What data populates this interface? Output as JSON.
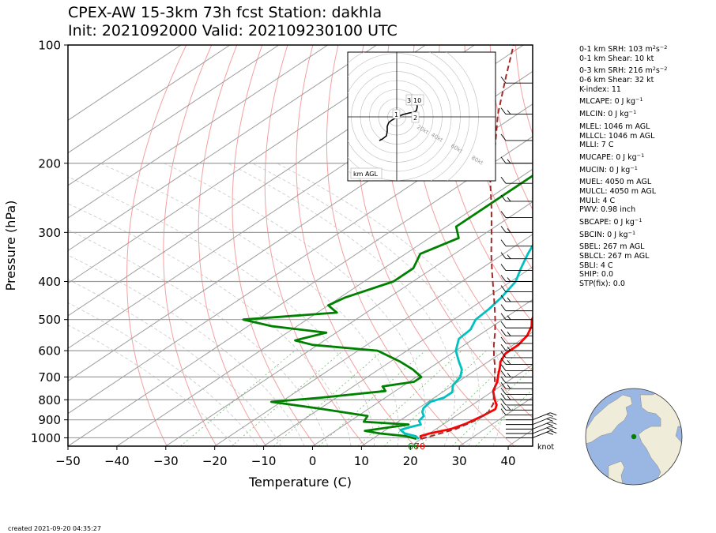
{
  "title_line1": "CPEX-AW 15-3km  73h fcst  Station: dakhla",
  "title_line2": "Init: 2021092000  Valid: 202109230100 UTC",
  "chart_data": {
    "type": "line",
    "chart_kind": "skew-T log-P sounding",
    "xlabel": "Temperature (C)",
    "ylabel": "Pressure (hPa)",
    "xlim": [
      -50,
      45
    ],
    "ylim": [
      1050,
      100
    ],
    "y_scale": "log",
    "x_ticks": [
      "−50",
      "−40",
      "−30",
      "−20",
      "−10",
      "0",
      "10",
      "20",
      "30",
      "40"
    ],
    "x_tick_values": [
      -50,
      -40,
      -30,
      -20,
      -10,
      0,
      10,
      20,
      30,
      40
    ],
    "y_ticks": [
      100,
      200,
      300,
      400,
      500,
      600,
      700,
      800,
      900,
      1000
    ],
    "surface_labels": {
      "dewpoint": "66",
      "temperature": "70"
    },
    "barb_units": "knot",
    "series": [
      {
        "id": "temperature",
        "color": "#ff0000",
        "points": [
          [
            1006,
            20
          ],
          [
            990,
            19
          ],
          [
            975,
            20
          ],
          [
            950,
            23
          ],
          [
            920,
            24.5
          ],
          [
            880,
            25.5
          ],
          [
            845,
            26
          ],
          [
            825,
            25
          ],
          [
            800,
            23
          ],
          [
            760,
            20
          ],
          [
            720,
            18
          ],
          [
            690,
            16
          ],
          [
            660,
            14
          ],
          [
            640,
            12.5
          ],
          [
            610,
            11
          ],
          [
            580,
            11
          ],
          [
            550,
            10
          ],
          [
            520,
            8
          ],
          [
            500,
            6
          ],
          [
            470,
            4
          ],
          [
            450,
            2
          ],
          [
            420,
            -2
          ],
          [
            400,
            -5
          ],
          [
            370,
            -9
          ],
          [
            340,
            -12
          ],
          [
            300,
            -16
          ],
          [
            270,
            -19
          ],
          [
            240,
            -23
          ],
          [
            210,
            -27
          ],
          [
            190,
            -30
          ],
          [
            170,
            -32.5
          ],
          [
            150,
            -35
          ],
          [
            130,
            -37.5
          ],
          [
            115,
            -39
          ],
          [
            100,
            -40
          ]
        ]
      },
      {
        "id": "dewpoint",
        "color": "#008000",
        "points": [
          [
            1006,
            19
          ],
          [
            990,
            16
          ],
          [
            975,
            10
          ],
          [
            960,
            6
          ],
          [
            940,
            10
          ],
          [
            925,
            13
          ],
          [
            910,
            3
          ],
          [
            880,
            2
          ],
          [
            840,
            -11
          ],
          [
            810,
            -22
          ],
          [
            790,
            -13
          ],
          [
            760,
            -2
          ],
          [
            740,
            -4
          ],
          [
            720,
            1
          ],
          [
            700,
            1
          ],
          [
            670,
            -3
          ],
          [
            640,
            -8
          ],
          [
            600,
            -16
          ],
          [
            580,
            -31
          ],
          [
            565,
            -36
          ],
          [
            540,
            -32
          ],
          [
            520,
            -45
          ],
          [
            500,
            -53
          ],
          [
            480,
            -36
          ],
          [
            460,
            -40
          ],
          [
            440,
            -39
          ],
          [
            400,
            -34
          ],
          [
            370,
            -34
          ],
          [
            340,
            -37
          ],
          [
            310,
            -34
          ],
          [
            290,
            -38
          ],
          [
            260,
            -38
          ],
          [
            230,
            -38
          ],
          [
            200,
            -38
          ],
          [
            170,
            -37
          ],
          [
            150,
            -37
          ],
          [
            130,
            -39
          ],
          [
            115,
            -40
          ],
          [
            100,
            -42
          ]
        ]
      },
      {
        "id": "wetbulb",
        "color": "#00c0c0",
        "points": [
          [
            1006,
            19.5
          ],
          [
            990,
            18
          ],
          [
            975,
            15
          ],
          [
            955,
            13
          ],
          [
            940,
            14
          ],
          [
            925,
            15.5
          ],
          [
            905,
            14
          ],
          [
            880,
            13.5
          ],
          [
            860,
            12
          ],
          [
            840,
            11
          ],
          [
            810,
            10.5
          ],
          [
            790,
            12
          ],
          [
            765,
            12
          ],
          [
            735,
            10
          ],
          [
            700,
            9
          ],
          [
            670,
            7
          ],
          [
            640,
            4
          ],
          [
            600,
            0
          ],
          [
            560,
            -3
          ],
          [
            530,
            -3.5
          ],
          [
            500,
            -5.5
          ],
          [
            470,
            -6
          ],
          [
            440,
            -7
          ],
          [
            400,
            -9
          ],
          [
            370,
            -12
          ],
          [
            340,
            -15
          ],
          [
            300,
            -19
          ],
          [
            270,
            -22
          ],
          [
            240,
            -26
          ],
          [
            210,
            -30
          ],
          [
            190,
            -32.5
          ],
          [
            170,
            -34
          ],
          [
            150,
            -36
          ],
          [
            130,
            -38
          ],
          [
            115,
            -39
          ],
          [
            100,
            -40
          ]
        ]
      },
      {
        "id": "parcel",
        "color": "#a52a2a",
        "dashed": true,
        "points": [
          [
            1006,
            20
          ],
          [
            950,
            24
          ],
          [
            900,
            25.5
          ],
          [
            860,
            25.5
          ],
          [
            820,
            24
          ],
          [
            780,
            21.5
          ],
          [
            740,
            19
          ],
          [
            700,
            16
          ],
          [
            660,
            13
          ],
          [
            620,
            9.5
          ],
          [
            580,
            6
          ],
          [
            540,
            2.5
          ],
          [
            500,
            -1.5
          ],
          [
            460,
            -6
          ],
          [
            420,
            -11
          ],
          [
            380,
            -16.5
          ],
          [
            340,
            -22.5
          ],
          [
            300,
            -29
          ],
          [
            260,
            -36.5
          ],
          [
            220,
            -45.5
          ],
          [
            180,
            -55
          ],
          [
            150,
            -64
          ],
          [
            120,
            -74
          ],
          [
            100,
            -82
          ]
        ]
      }
    ],
    "hodograph": {
      "label": "km AGL",
      "ring_labels": [
        "20kt",
        "40kt",
        "60kt",
        "80kt"
      ],
      "height_labels": [
        "1",
        "2",
        "3",
        "10"
      ]
    }
  },
  "stats": [
    {
      "text": "0-1 km SRH: 103 m",
      "sup": "2",
      "tail": "s",
      "sup2": "−2"
    },
    {
      "text": "0-1 km Shear: 10 kt"
    },
    {
      "text": "0-3 km SRH: 216 m",
      "sup": "2",
      "tail": "s",
      "sup2": "−2",
      "gap": true
    },
    {
      "text": "0-6 km Shear: 32 kt"
    },
    {
      "text": "K-index: 11"
    },
    {
      "text": "MLCAPE: 0 J kg",
      "sup": "−1",
      "gap": true
    },
    {
      "text": "MLCIN: 0 J kg",
      "sup": "−1",
      "gap": true
    },
    {
      "text": "MLEL: 1046 m AGL",
      "gap": true
    },
    {
      "text": "MLLCL: 1046 m AGL"
    },
    {
      "text": "MLLI: 7 C"
    },
    {
      "text": "MUCAPE: 0 J kg",
      "sup": "−1",
      "gap": true
    },
    {
      "text": "MUCIN: 0 J kg",
      "sup": "−1",
      "gap": true
    },
    {
      "text": "MUEL: 4050 m AGL",
      "gap": true
    },
    {
      "text": "MULCL: 4050 m AGL"
    },
    {
      "text": "MULI: 4 C"
    },
    {
      "text": "PWV: 0.98 inch"
    },
    {
      "text": "SBCAPE: 0 J kg",
      "sup": "−1",
      "gap": true
    },
    {
      "text": "SBCIN: 0 J kg",
      "sup": "−1",
      "gap": true
    },
    {
      "text": "SBEL: 267 m AGL",
      "gap": true
    },
    {
      "text": "SBLCL: 267 m AGL"
    },
    {
      "text": "SBLI: 4 C"
    },
    {
      "text": "SHIP: 0.0"
    },
    {
      "text": "STP(fix): 0.0"
    }
  ],
  "footer": "created 2021-09-20 04:35:27",
  "colors": {
    "isobar": "#9e9e9e",
    "isotherm": "#9e9e9e",
    "dry_adiabat": "#f4a0a0",
    "moist_adiabat": "#c8c8c8",
    "mixing_ratio": "#6cbf6c",
    "ocean": "#9ab7e3",
    "land": "#efecd9",
    "station": "#008000"
  }
}
